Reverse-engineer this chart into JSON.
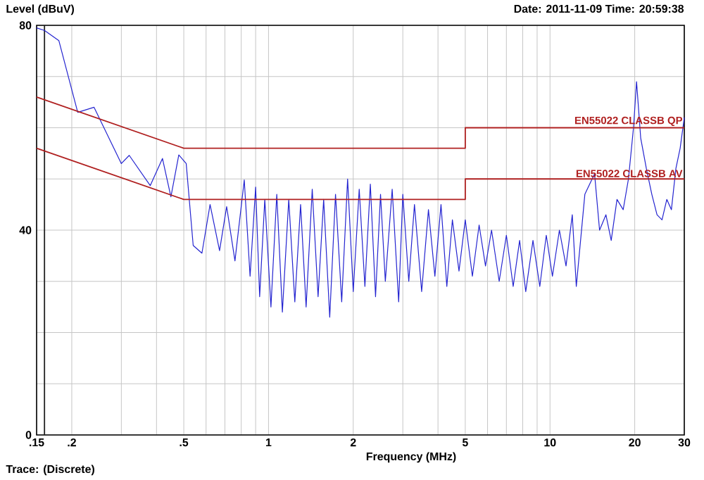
{
  "chart_data": {
    "type": "line",
    "title": "Date: 2011-11-09  Time: 20:59:38",
    "xlabel": "Frequency (MHz)",
    "ylabel": "Level (dBuV)",
    "annotations": [
      "Trace:  (Discrete)"
    ],
    "log": "x",
    "grid": true,
    "line_style": "solid",
    "xlim": [
      0.15,
      30
    ],
    "ylim": [
      0,
      80
    ],
    "xticks": [
      {
        "value": 0.15,
        "label": ".15"
      },
      {
        "value": 0.2,
        "label": ".2"
      },
      {
        "value": 0.3,
        "label": null
      },
      {
        "value": 0.4,
        "label": null
      },
      {
        "value": 0.5,
        "label": ".5"
      },
      {
        "value": 0.6,
        "label": null
      },
      {
        "value": 0.7,
        "label": null
      },
      {
        "value": 0.8,
        "label": null
      },
      {
        "value": 0.9,
        "label": null
      },
      1,
      2,
      {
        "value": 3,
        "label": null
      },
      {
        "value": 4,
        "label": null
      },
      5,
      {
        "value": 6,
        "label": null
      },
      {
        "value": 7,
        "label": null
      },
      {
        "value": 8,
        "label": null
      },
      {
        "value": 9,
        "label": null
      },
      10,
      20,
      30
    ],
    "yticks": [
      0,
      {
        "value": 10,
        "label": null
      },
      {
        "value": 20,
        "label": null
      },
      {
        "value": 30,
        "label": null
      },
      40,
      {
        "value": 50,
        "label": null
      },
      {
        "value": 60,
        "label": null
      },
      {
        "value": 70,
        "label": null
      },
      80
    ],
    "ref_lines": [
      {
        "axis": "x",
        "value": 0.16,
        "color": "#202020"
      }
    ],
    "series": [
      {
        "color": "#2424d0",
        "x": [
          0.15,
          0.16,
          0.18,
          0.21,
          0.24,
          0.3,
          0.32,
          0.38,
          0.42,
          0.45,
          0.48,
          0.51,
          0.54,
          0.58,
          0.62,
          0.67,
          0.71,
          0.76,
          0.82,
          0.86,
          0.9,
          0.93,
          0.97,
          1.02,
          1.07,
          1.12,
          1.18,
          1.24,
          1.3,
          1.36,
          1.43,
          1.5,
          1.57,
          1.65,
          1.73,
          1.82,
          1.91,
          2.0,
          2.1,
          2.2,
          2.3,
          2.4,
          2.5,
          2.6,
          2.75,
          2.9,
          3.0,
          3.15,
          3.3,
          3.5,
          3.7,
          3.9,
          4.1,
          4.3,
          4.5,
          4.75,
          5.0,
          5.3,
          5.6,
          5.9,
          6.2,
          6.6,
          7.0,
          7.4,
          7.8,
          8.2,
          8.7,
          9.2,
          9.7,
          10.2,
          10.8,
          11.4,
          12.0,
          12.4,
          13.3,
          14.4,
          15.0,
          15.8,
          16.5,
          17.3,
          18.2,
          19.0,
          19.8,
          20.3,
          21,
          22,
          23,
          24,
          25,
          26,
          27,
          28,
          29,
          30
        ],
        "values": [
          79.5,
          79,
          77,
          63,
          64,
          53,
          54.6,
          48.7,
          54,
          46.5,
          54.7,
          53,
          37,
          35.5,
          45,
          36,
          44.6,
          34,
          49.8,
          31,
          48.4,
          27,
          46,
          25,
          47,
          24,
          46,
          26,
          45,
          25,
          48,
          27,
          46,
          23,
          47,
          26,
          50,
          28,
          48,
          29,
          49,
          27,
          47,
          30,
          48,
          26,
          47,
          30,
          45,
          28,
          44,
          31,
          45,
          29,
          42,
          32,
          42,
          31,
          41,
          33,
          40,
          30,
          39,
          29,
          38,
          28,
          38,
          29,
          39,
          31,
          40,
          33,
          43,
          29,
          47,
          51,
          40,
          43,
          38,
          46,
          44,
          50,
          60,
          69,
          58,
          52,
          47,
          43,
          42,
          46,
          44,
          52,
          56,
          62
        ]
      },
      {
        "name": "EN55022 CLASSB QP",
        "color": "#b02020",
        "x": [
          0.15,
          0.5,
          5,
          5,
          30
        ],
        "values": [
          66,
          56,
          56,
          60,
          60
        ]
      },
      {
        "name": "EN55022 CLASSB AV",
        "color": "#b02020",
        "x": [
          0.15,
          0.5,
          5,
          5,
          30
        ],
        "values": [
          56,
          46,
          46,
          50,
          50
        ]
      }
    ]
  }
}
